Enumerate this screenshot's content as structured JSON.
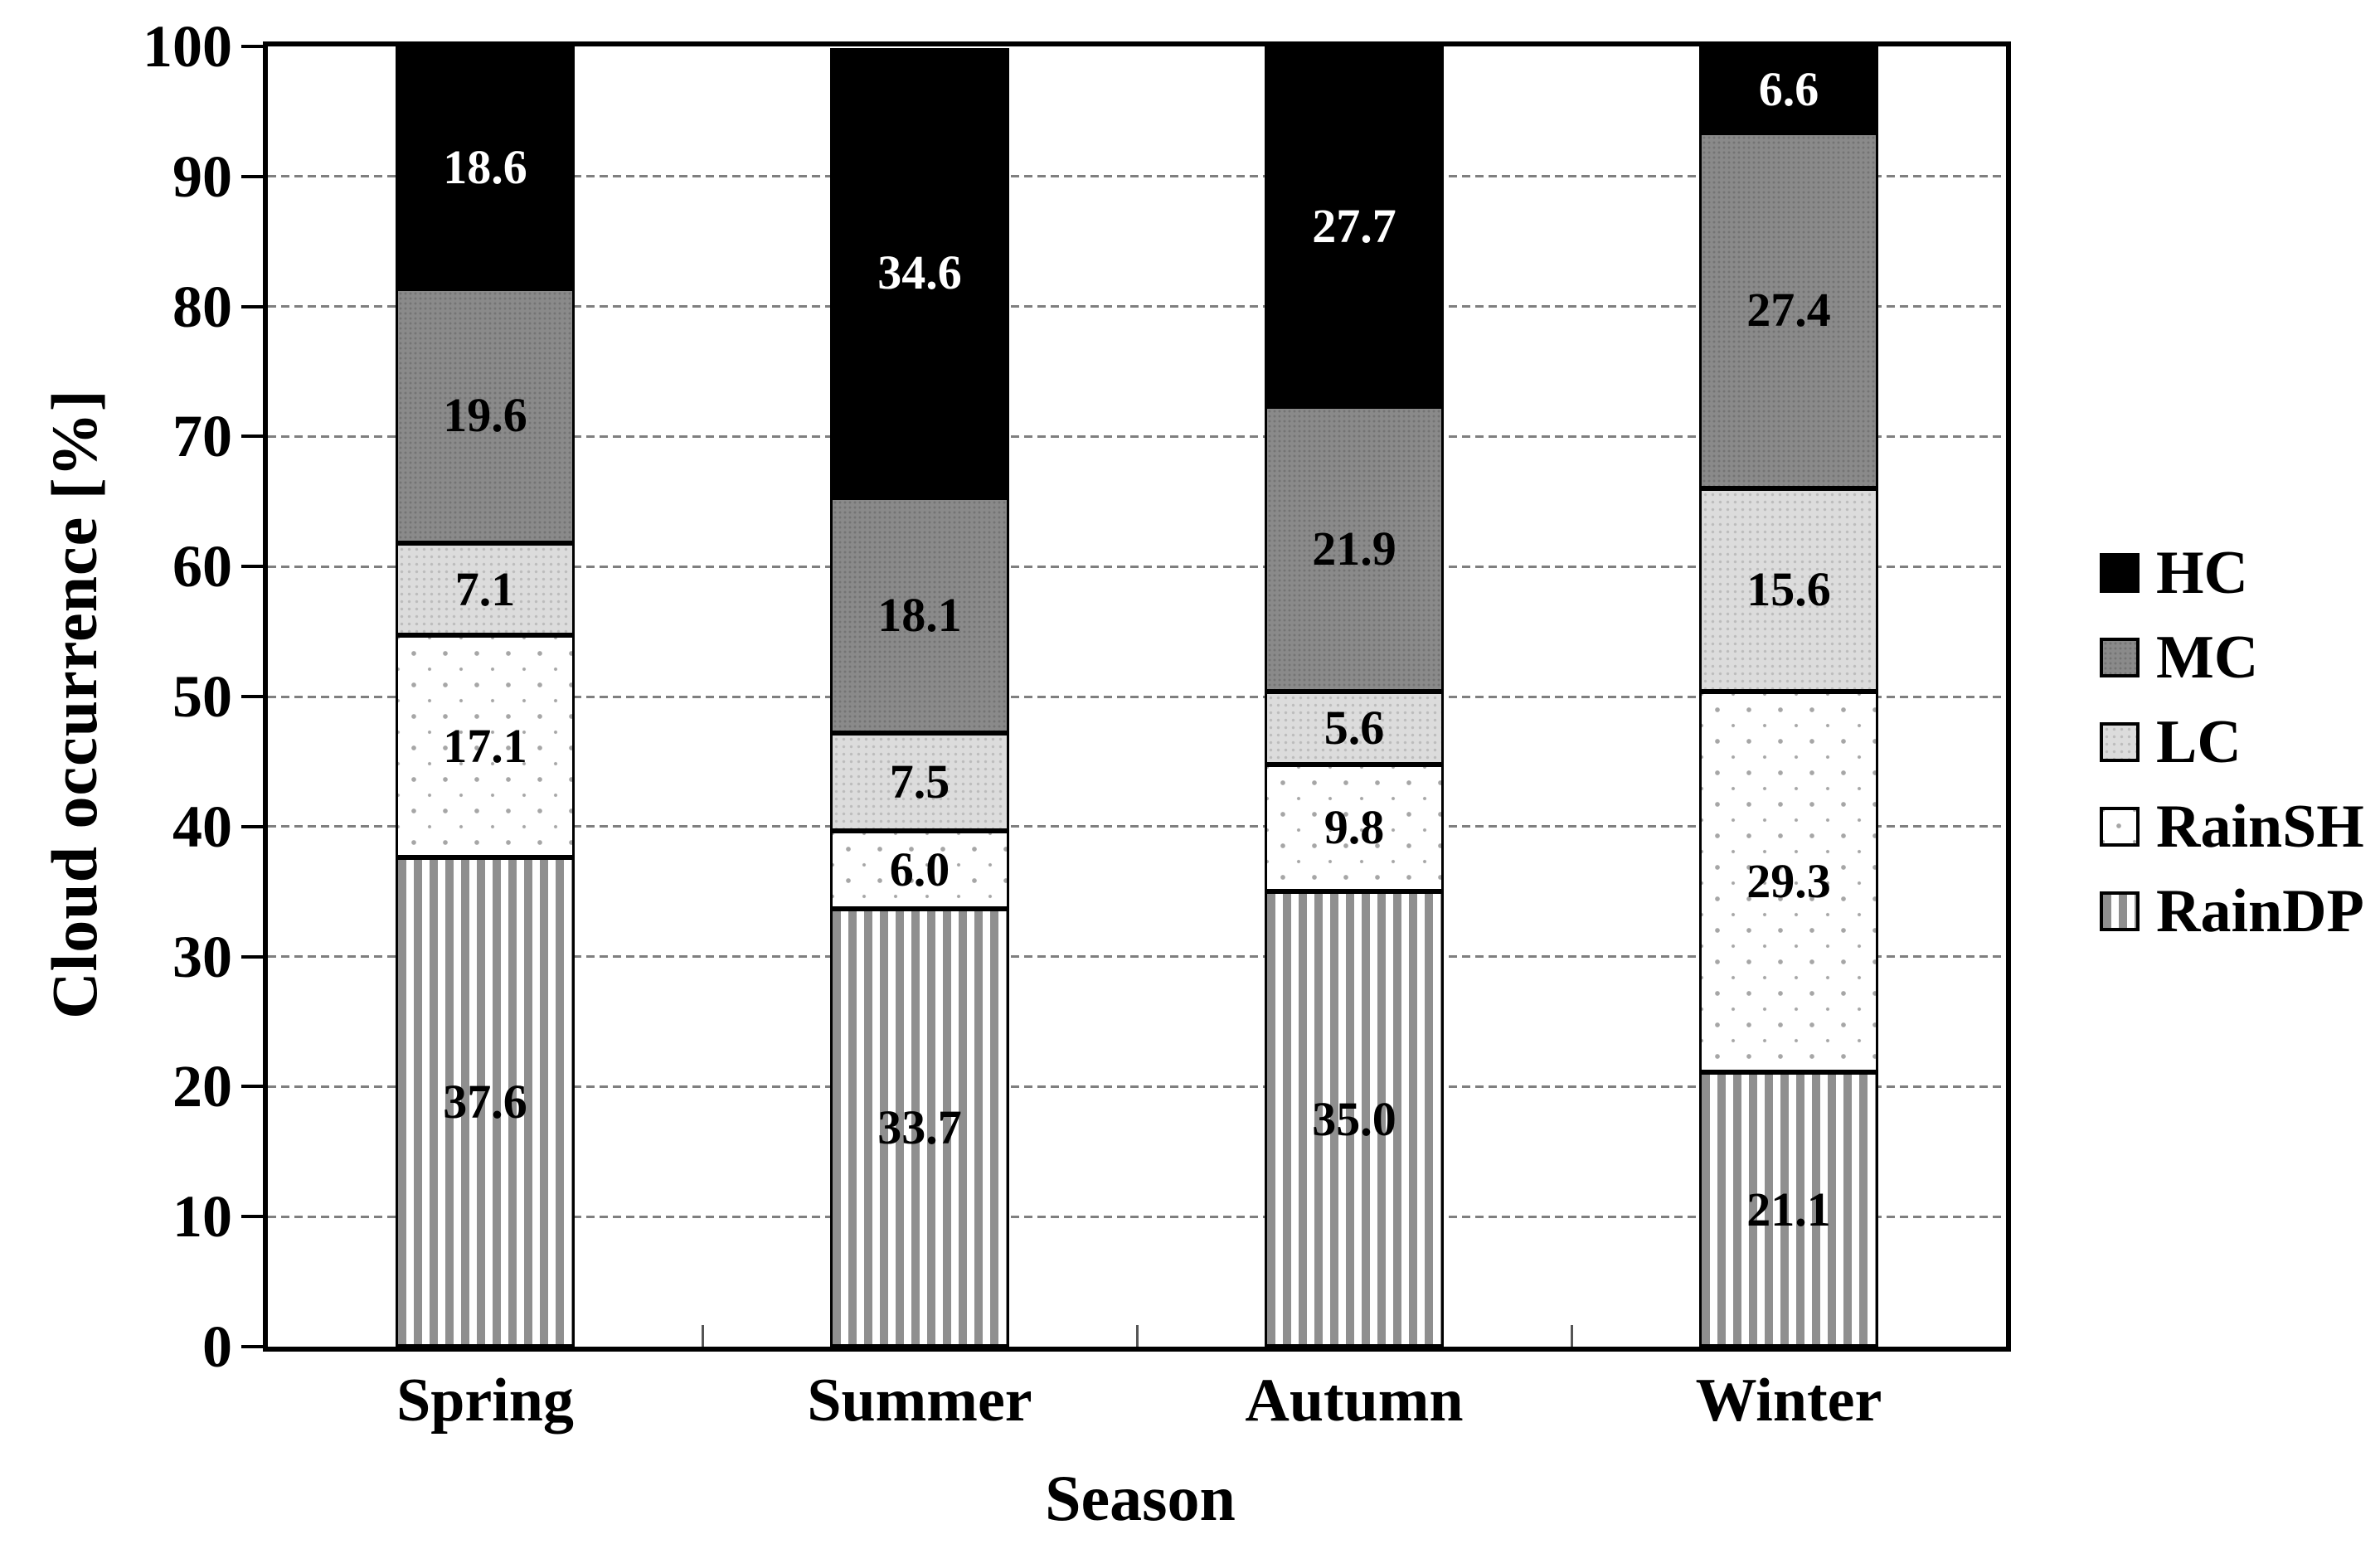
{
  "chart_data": {
    "type": "bar",
    "stacked": true,
    "title": "",
    "xlabel": "Season",
    "ylabel": "Cloud occurrence [%]",
    "ylim": [
      0,
      100
    ],
    "y_ticks": [
      0,
      10,
      20,
      30,
      40,
      50,
      60,
      70,
      80,
      90,
      100
    ],
    "grid": "horizontal dashed at every 10",
    "legend_position": "right",
    "categories": [
      "Spring",
      "Summer",
      "Autumn",
      "Winter"
    ],
    "series": [
      {
        "name": "HC",
        "key": "hc",
        "values": [
          18.6,
          34.6,
          27.7,
          6.6
        ]
      },
      {
        "name": "MC",
        "key": "mc",
        "values": [
          19.6,
          18.1,
          21.9,
          27.4
        ]
      },
      {
        "name": "LC",
        "key": "lc",
        "values": [
          7.1,
          7.5,
          5.6,
          15.6
        ]
      },
      {
        "name": "RainSH",
        "key": "rainsh",
        "values": [
          17.1,
          6.0,
          9.8,
          29.3
        ]
      },
      {
        "name": "RainDP",
        "key": "raindp",
        "values": [
          37.6,
          33.7,
          35.0,
          21.1
        ]
      }
    ],
    "stack_order_bottom_to_top": [
      "raindp",
      "rainsh",
      "lc",
      "mc",
      "hc"
    ],
    "value_label_decimals": 1
  },
  "colors": {
    "hc_fill": "#000000",
    "hc_label": "#ffffff",
    "mc_fill": "#8a8a8a",
    "mc_dot": "#747474",
    "mc_label": "#000000",
    "lc_fill": "#dcdcdc",
    "lc_dot": "#bcbcbc",
    "lc_label": "#000000",
    "rainsh_fill": "#ffffff",
    "rainsh_dot": "#a6a6a6",
    "rainsh_label": "#000000",
    "raindp_fill": "#ffffff",
    "raindp_stripe": "#8f8f8f",
    "raindp_label": "#000000",
    "grid": "#7f7f7f",
    "axis": "#000000"
  }
}
